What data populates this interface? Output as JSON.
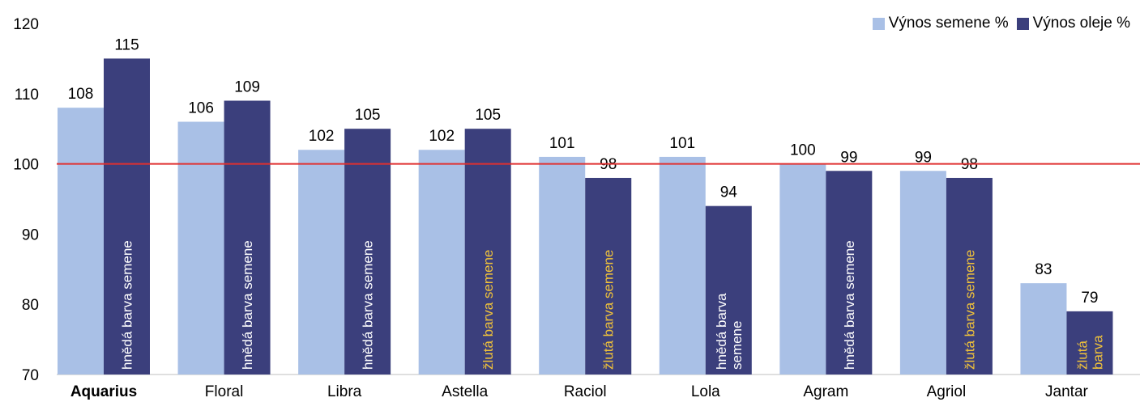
{
  "chart_data": {
    "type": "bar",
    "categories": [
      "Aquarius",
      "Floral",
      "Libra",
      "Astella",
      "Raciol",
      "Lola",
      "Agram",
      "Agriol",
      "Jantar"
    ],
    "highlight_category": "Aquarius",
    "series": [
      {
        "name": "Výnos semene %",
        "color": "#a9c0e6",
        "values": [
          108,
          106,
          102,
          102,
          101,
          101,
          100,
          99,
          83
        ]
      },
      {
        "name": "Výnos oleje %",
        "color": "#3b3f7c",
        "values": [
          115,
          109,
          105,
          105,
          98,
          94,
          99,
          98,
          79
        ]
      }
    ],
    "bar_notes": [
      {
        "text": "hnědá barva semene",
        "lines": [
          "hnědá barva semene"
        ],
        "color": "#ffffff"
      },
      {
        "text": "hnědá barva semene",
        "lines": [
          "hnědá barva semene"
        ],
        "color": "#ffffff"
      },
      {
        "text": "hnědá barva semene",
        "lines": [
          "hnědá barva semene"
        ],
        "color": "#ffffff"
      },
      {
        "text": "žlutá barva semene",
        "lines": [
          "žlutá barva semene"
        ],
        "color": "#f0c23a"
      },
      {
        "text": "žlutá barva semene",
        "lines": [
          "žlutá barva semene"
        ],
        "color": "#f0c23a"
      },
      {
        "text": "hnědá barva semene",
        "lines": [
          "hnědá barva",
          "semene"
        ],
        "color": "#ffffff"
      },
      {
        "text": "hnědá barva semene",
        "lines": [
          "hnědá barva semene"
        ],
        "color": "#ffffff"
      },
      {
        "text": "žlutá barva semene",
        "lines": [
          "žlutá barva semene"
        ],
        "color": "#f0c23a"
      },
      {
        "text": "žlutá barva",
        "lines": [
          "žlutá",
          "barva"
        ],
        "color": "#f0c23a"
      }
    ],
    "y_ticks": [
      "70",
      "80",
      "90",
      "100",
      "110",
      "120"
    ],
    "ylim": [
      70,
      120
    ],
    "reference_line": {
      "value": 100,
      "color": "#e03030"
    },
    "highlight_color": "#e0202e",
    "legend_position": "top-right",
    "grid": false
  }
}
